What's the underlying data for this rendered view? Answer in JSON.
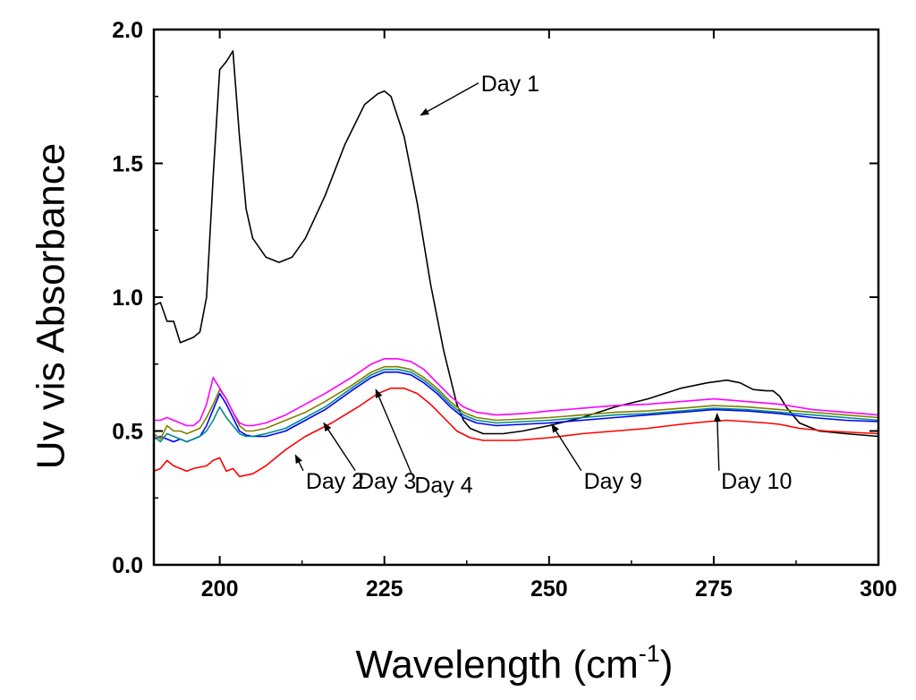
{
  "chart_data": {
    "type": "line",
    "title": "",
    "xlabel": "Wavelength (cm",
    "xlabel_sup": "-1",
    "xlabel_tail": ")",
    "ylabel": "Uv vis Absorbance",
    "xlim": [
      190,
      300
    ],
    "ylim": [
      0,
      2.0
    ],
    "xticks": [
      200,
      225,
      250,
      275,
      300
    ],
    "yticks": [
      0.0,
      0.5,
      1.0,
      1.5,
      2.0
    ],
    "xtick_labels": [
      "200",
      "225",
      "250",
      "275",
      "300"
    ],
    "ytick_labels": [
      "0.0",
      "0.5",
      "1.0",
      "1.5",
      "2.0"
    ],
    "grid": false,
    "series": [
      {
        "name": "Day 1",
        "color": "#000000",
        "x": [
          190,
          191,
          192,
          193,
          194,
          196,
          197,
          198,
          199,
          200,
          201,
          202,
          203,
          204,
          205,
          207,
          209,
          211,
          213,
          216,
          219,
          222,
          224,
          225,
          226,
          228,
          230,
          232,
          234,
          236,
          237,
          238,
          240,
          243,
          246,
          250,
          255,
          260,
          265,
          270,
          274,
          277,
          279,
          281,
          283,
          284,
          285,
          286,
          288,
          291,
          295,
          300
        ],
        "y": [
          0.97,
          0.98,
          0.91,
          0.91,
          0.83,
          0.85,
          0.87,
          1.0,
          1.45,
          1.85,
          1.88,
          1.92,
          1.6,
          1.33,
          1.22,
          1.15,
          1.13,
          1.15,
          1.22,
          1.38,
          1.57,
          1.72,
          1.76,
          1.77,
          1.75,
          1.6,
          1.35,
          1.05,
          0.8,
          0.6,
          0.54,
          0.51,
          0.49,
          0.49,
          0.5,
          0.52,
          0.55,
          0.59,
          0.62,
          0.66,
          0.68,
          0.69,
          0.68,
          0.655,
          0.65,
          0.65,
          0.63,
          0.59,
          0.53,
          0.5,
          0.49,
          0.48
        ]
      },
      {
        "name": "Day 2",
        "color": "#ff0000",
        "x": [
          190,
          191,
          192,
          193,
          194,
          195,
          196,
          198,
          199,
          200,
          201,
          202,
          203,
          205,
          207,
          210,
          213,
          217,
          221,
          224,
          226,
          228,
          230,
          232,
          234,
          236,
          238,
          240,
          245,
          250,
          255,
          260,
          265,
          270,
          274,
          277,
          280,
          283,
          285,
          288,
          292,
          296,
          300
        ],
        "y": [
          0.35,
          0.36,
          0.39,
          0.37,
          0.36,
          0.35,
          0.36,
          0.37,
          0.39,
          0.4,
          0.35,
          0.36,
          0.33,
          0.34,
          0.37,
          0.43,
          0.48,
          0.53,
          0.59,
          0.64,
          0.66,
          0.66,
          0.64,
          0.6,
          0.55,
          0.5,
          0.475,
          0.465,
          0.465,
          0.475,
          0.49,
          0.5,
          0.51,
          0.525,
          0.535,
          0.54,
          0.535,
          0.53,
          0.525,
          0.51,
          0.5,
          0.495,
          0.49
        ]
      },
      {
        "name": "Day 3",
        "color": "#0000ff",
        "x": [
          190,
          191,
          192,
          193,
          194,
          195,
          196,
          197,
          198,
          199,
          200,
          201,
          202,
          203,
          204,
          205,
          207,
          210,
          213,
          216,
          220,
          223,
          225,
          227,
          229,
          231,
          233,
          235,
          237,
          239,
          242,
          246,
          250,
          255,
          260,
          265,
          270,
          275,
          280,
          285,
          290,
          295,
          300
        ],
        "y": [
          0.47,
          0.48,
          0.47,
          0.46,
          0.47,
          0.46,
          0.47,
          0.48,
          0.52,
          0.58,
          0.64,
          0.6,
          0.55,
          0.5,
          0.485,
          0.48,
          0.48,
          0.5,
          0.54,
          0.58,
          0.65,
          0.7,
          0.72,
          0.72,
          0.71,
          0.68,
          0.64,
          0.59,
          0.55,
          0.53,
          0.52,
          0.525,
          0.53,
          0.54,
          0.55,
          0.56,
          0.57,
          0.58,
          0.575,
          0.565,
          0.55,
          0.54,
          0.535
        ]
      },
      {
        "name": "Day 4",
        "color": "#808000",
        "x": [
          190,
          191,
          192,
          193,
          194,
          195,
          196,
          197,
          198,
          199,
          200,
          201,
          202,
          203,
          204,
          205,
          207,
          210,
          213,
          216,
          220,
          223,
          225,
          227,
          229,
          231,
          233,
          235,
          237,
          239,
          242,
          246,
          250,
          255,
          260,
          265,
          270,
          275,
          280,
          285,
          290,
          295,
          300
        ],
        "y": [
          0.49,
          0.47,
          0.52,
          0.5,
          0.5,
          0.49,
          0.5,
          0.51,
          0.55,
          0.6,
          0.655,
          0.62,
          0.57,
          0.52,
          0.5,
          0.5,
          0.51,
          0.54,
          0.57,
          0.61,
          0.67,
          0.72,
          0.74,
          0.74,
          0.73,
          0.7,
          0.66,
          0.61,
          0.57,
          0.55,
          0.54,
          0.545,
          0.55,
          0.56,
          0.57,
          0.575,
          0.585,
          0.595,
          0.59,
          0.58,
          0.57,
          0.56,
          0.55
        ]
      },
      {
        "name": "Day 9",
        "color": "#008b8b",
        "x": [
          190,
          191,
          192,
          193,
          194,
          195,
          196,
          197,
          198,
          199,
          200,
          201,
          202,
          203,
          204,
          205,
          207,
          210,
          213,
          216,
          220,
          223,
          225,
          227,
          229,
          231,
          233,
          235,
          237,
          239,
          242,
          246,
          250,
          255,
          260,
          265,
          270,
          275,
          280,
          285,
          290,
          295,
          300
        ],
        "y": [
          0.48,
          0.46,
          0.49,
          0.48,
          0.47,
          0.46,
          0.47,
          0.48,
          0.5,
          0.54,
          0.59,
          0.55,
          0.52,
          0.49,
          0.48,
          0.48,
          0.49,
          0.51,
          0.55,
          0.59,
          0.66,
          0.71,
          0.73,
          0.73,
          0.72,
          0.69,
          0.65,
          0.6,
          0.56,
          0.54,
          0.53,
          0.535,
          0.54,
          0.55,
          0.56,
          0.565,
          0.575,
          0.585,
          0.58,
          0.57,
          0.56,
          0.55,
          0.54
        ]
      },
      {
        "name": "Day 10",
        "color": "#ff00ff",
        "x": [
          190,
          191,
          192,
          193,
          194,
          195,
          196,
          197,
          198,
          199,
          200,
          201,
          202,
          203,
          204,
          205,
          207,
          210,
          213,
          216,
          220,
          223,
          225,
          227,
          229,
          231,
          233,
          235,
          237,
          239,
          242,
          246,
          250,
          255,
          260,
          265,
          270,
          275,
          280,
          285,
          290,
          295,
          300
        ],
        "y": [
          0.54,
          0.54,
          0.55,
          0.54,
          0.53,
          0.52,
          0.52,
          0.54,
          0.6,
          0.7,
          0.66,
          0.62,
          0.57,
          0.53,
          0.52,
          0.52,
          0.53,
          0.56,
          0.6,
          0.64,
          0.7,
          0.75,
          0.77,
          0.77,
          0.76,
          0.73,
          0.68,
          0.63,
          0.59,
          0.57,
          0.56,
          0.565,
          0.575,
          0.585,
          0.595,
          0.6,
          0.61,
          0.62,
          0.61,
          0.6,
          0.58,
          0.57,
          0.56
        ]
      }
    ],
    "annotations": [
      {
        "label": "Day 1",
        "text_x": 244.1,
        "text_y": 1.77,
        "arrow_to": [
          230.5,
          1.68
        ]
      },
      {
        "label": "Day 2",
        "text_x": 217.5,
        "text_y": 0.285,
        "arrow_to": [
          211.5,
          0.41
        ]
      },
      {
        "label": "Day 3",
        "text_x": 225.4,
        "text_y": 0.285,
        "arrow_to": [
          215.8,
          0.53
        ]
      },
      {
        "label": "Day 4",
        "text_x": 234.0,
        "text_y": 0.27,
        "arrow_to": [
          223.7,
          0.655
        ]
      },
      {
        "label": "Day 9",
        "text_x": 259.7,
        "text_y": 0.285,
        "arrow_to": [
          250.4,
          0.525
        ]
      },
      {
        "label": "Day 10",
        "text_x": 281.5,
        "text_y": 0.285,
        "arrow_to": [
          275.5,
          0.565
        ]
      }
    ]
  }
}
